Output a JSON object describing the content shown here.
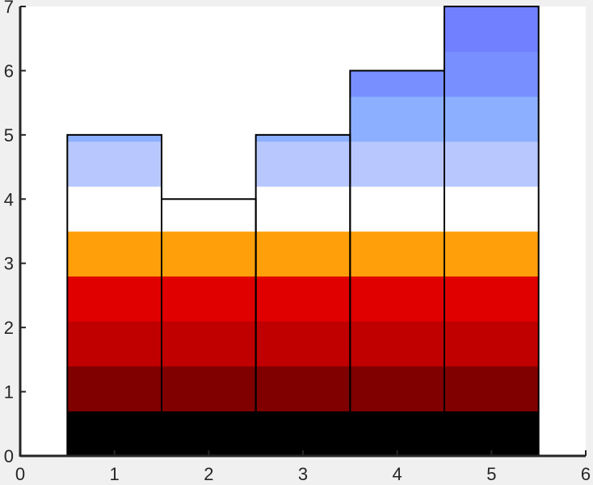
{
  "chart_data": {
    "type": "bar",
    "categories": [
      1,
      2,
      3,
      4,
      5
    ],
    "values": [
      5,
      4,
      5,
      6,
      7
    ],
    "bar_width": 1,
    "xlim": [
      0,
      6
    ],
    "ylim": [
      0,
      7
    ],
    "xticks": [
      "0",
      "1",
      "2",
      "3",
      "4",
      "5",
      "6"
    ],
    "yticks": [
      "0",
      "1",
      "2",
      "3",
      "4",
      "5",
      "6",
      "7"
    ],
    "grid": false,
    "color_band_step": 0.7,
    "band_colors": [
      "#000000",
      "#800000",
      "#c00000",
      "#e00000",
      "#ffa00a",
      "#ffffff",
      "#b8c8ff",
      "#8cb0ff",
      "#7890ff",
      "#7080ff"
    ],
    "edge_color": "#000000",
    "title": "",
    "xlabel": "",
    "ylabel": ""
  }
}
